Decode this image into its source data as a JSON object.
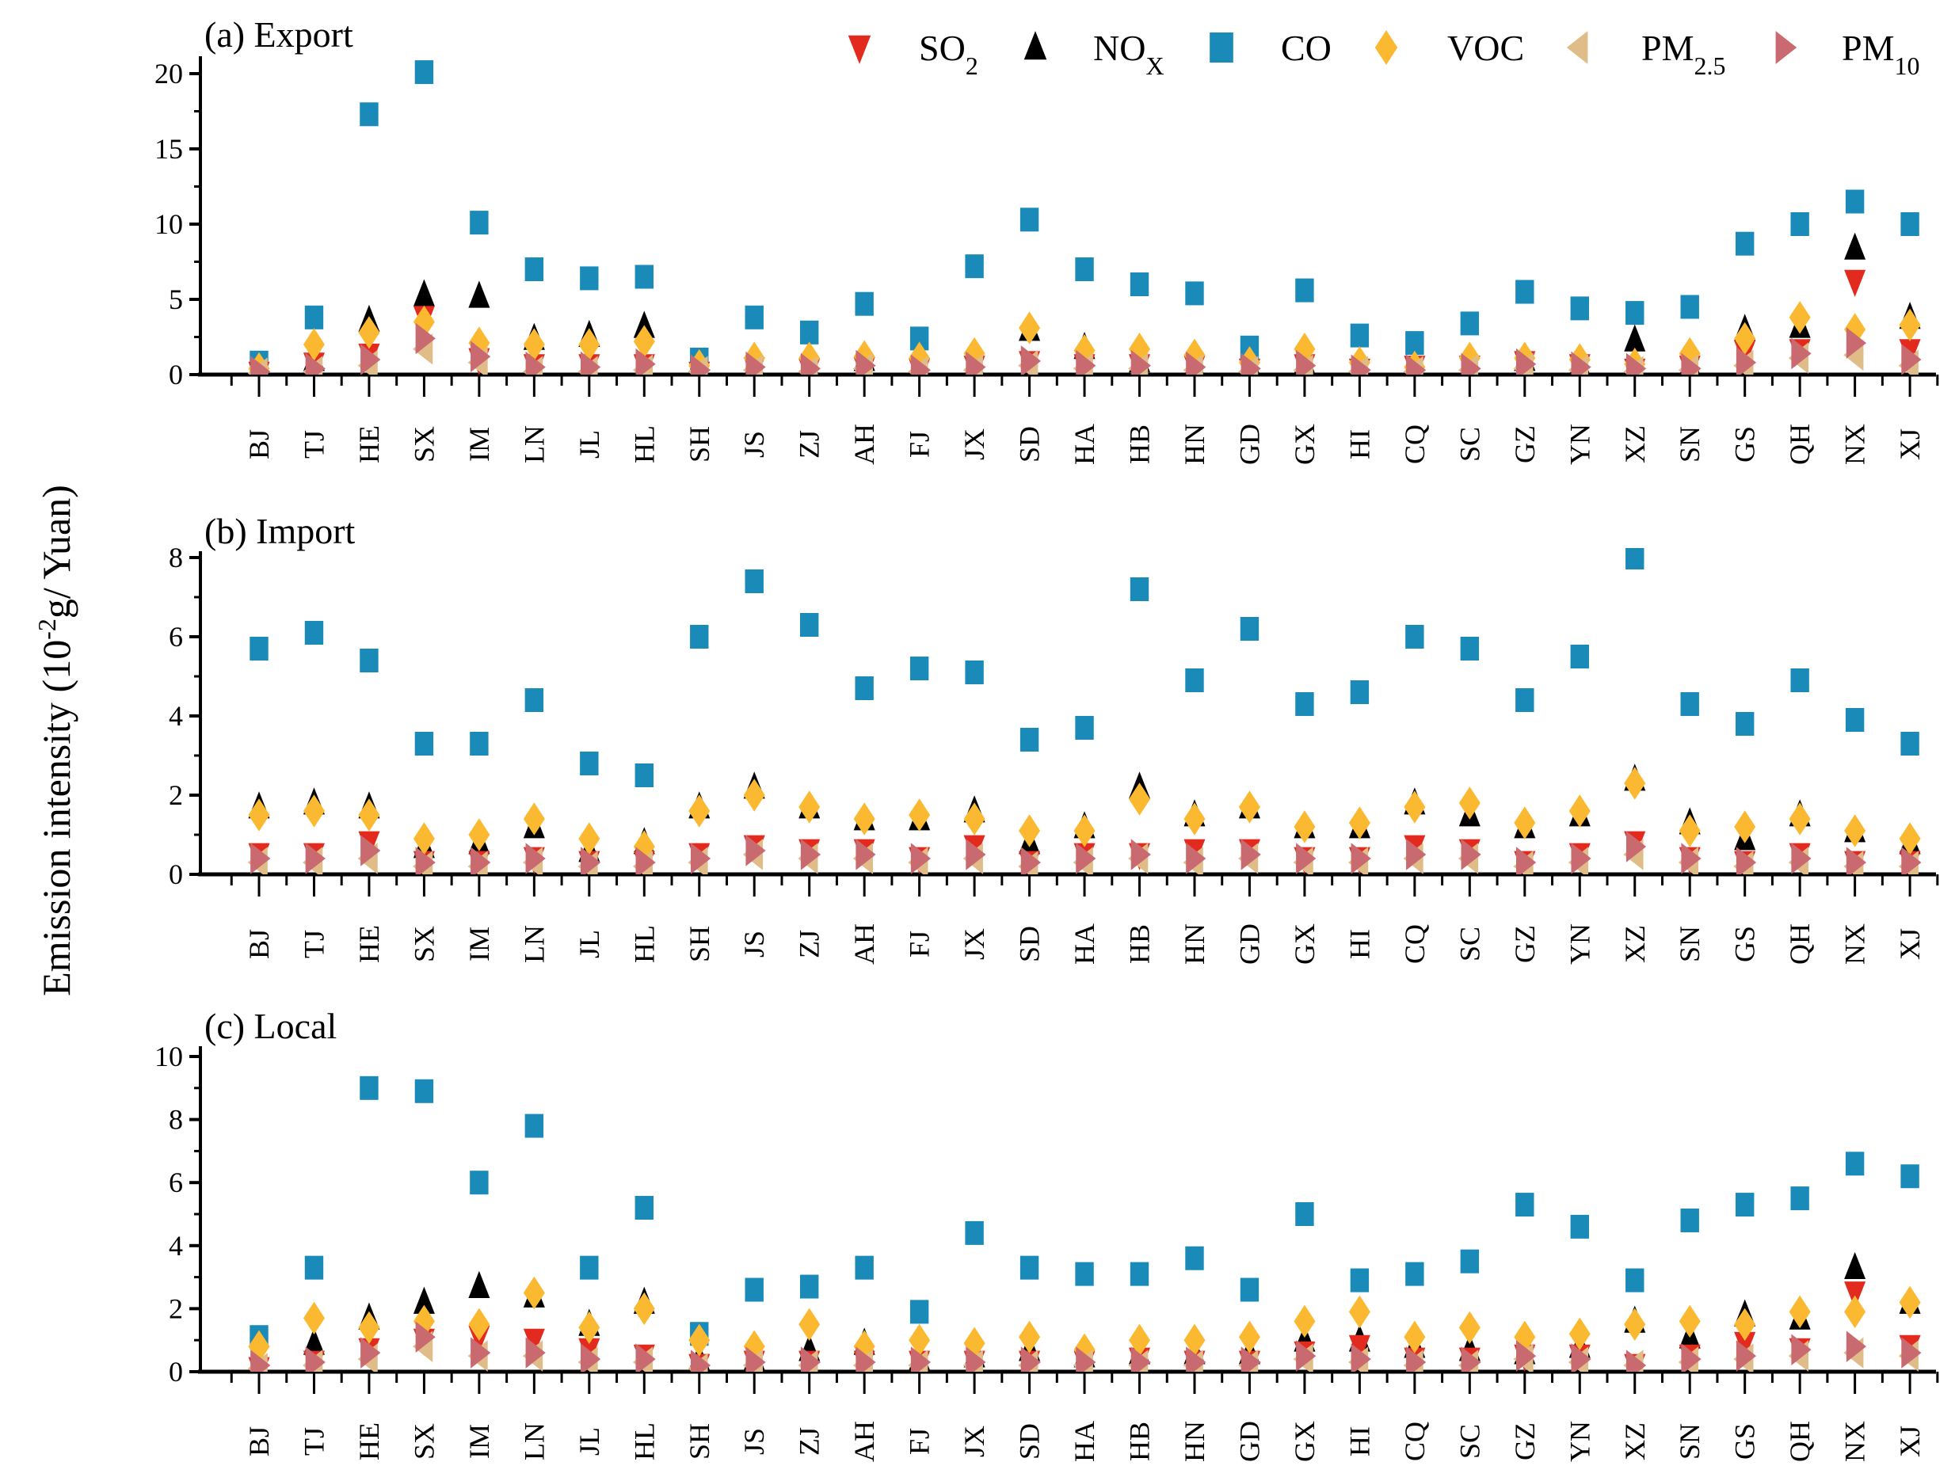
{
  "y_axis_label": {
    "main": "Emission intensity (10",
    "sup": "-2",
    "rest": "g/ Yuan)"
  },
  "legend": [
    {
      "key": "SO2",
      "main": "SO",
      "sub": "2",
      "color": "#e32a1f",
      "marker": "triangle-down"
    },
    {
      "key": "NOX",
      "main": "NO",
      "sub": "X",
      "color": "#000000",
      "marker": "triangle-up"
    },
    {
      "key": "CO",
      "main": "CO",
      "sub": "",
      "color": "#1a8ab8",
      "marker": "square"
    },
    {
      "key": "VOC",
      "main": "VOC",
      "sub": "",
      "color": "#fbb931",
      "marker": "diamond"
    },
    {
      "key": "PM25",
      "main": "PM",
      "sub": "2.5",
      "color": "#e0bd88",
      "marker": "triangle-left"
    },
    {
      "key": "PM10",
      "main": "PM",
      "sub": "10",
      "color": "#c96a70",
      "marker": "triangle-right"
    }
  ],
  "chart_data": [
    {
      "type": "scatter",
      "title": "(a) Export",
      "ylim": [
        0,
        20
      ],
      "yticks": [
        0,
        5,
        10,
        15,
        20
      ],
      "categories": [
        "BJ",
        "TJ",
        "HE",
        "SX",
        "IM",
        "LN",
        "JL",
        "HL",
        "SH",
        "JS",
        "ZJ",
        "AH",
        "FJ",
        "JX",
        "SD",
        "HA",
        "HB",
        "HN",
        "GD",
        "GX",
        "HI",
        "CQ",
        "SC",
        "GZ",
        "YN",
        "XZ",
        "SN",
        "GS",
        "QH",
        "NX",
        "XJ"
      ],
      "series": [
        {
          "name": "CO",
          "values": [
            0.8,
            3.8,
            17.3,
            20.1,
            10.1,
            7.0,
            6.4,
            6.5,
            1.0,
            3.8,
            2.8,
            4.7,
            2.4,
            7.2,
            10.3,
            7.0,
            6.0,
            5.4,
            1.8,
            5.6,
            2.6,
            2.1,
            3.4,
            5.5,
            4.4,
            4.1,
            4.5,
            8.7,
            10.0,
            11.5,
            10.0
          ]
        },
        {
          "name": "NOX",
          "values": [
            0.2,
            1.0,
            3.6,
            5.3,
            5.2,
            2.4,
            2.6,
            3.2,
            0.3,
            0.6,
            0.6,
            1.0,
            0.5,
            0.6,
            3.0,
            1.8,
            0.9,
            0.6,
            0.7,
            0.8,
            0.4,
            0.3,
            0.4,
            1.0,
            0.7,
            2.3,
            0.7,
            3.0,
            3.2,
            8.4,
            3.8
          ]
        },
        {
          "name": "SO2",
          "values": [
            0.1,
            0.7,
            1.3,
            3.8,
            1.0,
            0.6,
            0.6,
            0.6,
            0.1,
            0.4,
            0.3,
            0.4,
            0.3,
            0.5,
            0.8,
            0.6,
            0.6,
            0.5,
            0.3,
            0.6,
            0.3,
            0.5,
            0.5,
            0.8,
            0.6,
            0.3,
            0.5,
            1.5,
            1.6,
            6.2,
            1.6
          ]
        },
        {
          "name": "VOC",
          "values": [
            0.4,
            2.0,
            2.8,
            3.5,
            2.1,
            2.0,
            2.0,
            2.2,
            0.6,
            1.1,
            1.1,
            1.2,
            1.1,
            1.4,
            3.1,
            1.6,
            1.7,
            1.3,
            0.8,
            1.7,
            0.8,
            0.5,
            1.1,
            1.1,
            1.0,
            0.7,
            1.4,
            2.4,
            3.8,
            3.0,
            3.3
          ]
        },
        {
          "name": "PM25",
          "values": [
            0.1,
            0.2,
            0.6,
            1.7,
            0.8,
            0.2,
            0.2,
            0.3,
            0.2,
            0.3,
            0.2,
            0.4,
            0.2,
            0.3,
            0.6,
            0.4,
            0.4,
            0.3,
            0.2,
            0.3,
            0.2,
            0.2,
            0.3,
            0.4,
            0.3,
            0.2,
            0.3,
            0.6,
            1.1,
            1.3,
            0.6
          ]
        },
        {
          "name": "PM10",
          "values": [
            0.2,
            0.4,
            1.0,
            2.4,
            1.2,
            0.5,
            0.5,
            0.7,
            0.3,
            0.5,
            0.4,
            0.6,
            0.3,
            0.5,
            0.9,
            0.6,
            0.6,
            0.5,
            0.4,
            0.6,
            0.3,
            0.3,
            0.4,
            0.7,
            0.5,
            0.4,
            0.4,
            0.8,
            1.4,
            2.1,
            1.0
          ]
        }
      ]
    },
    {
      "type": "scatter",
      "title": "(b) Import",
      "ylim": [
        0,
        8
      ],
      "yticks": [
        0,
        2,
        4,
        6,
        8
      ],
      "categories": [
        "BJ",
        "TJ",
        "HE",
        "SX",
        "IM",
        "LN",
        "JL",
        "HL",
        "SH",
        "JS",
        "ZJ",
        "AH",
        "FJ",
        "JX",
        "SD",
        "HA",
        "HB",
        "HN",
        "GD",
        "GX",
        "HI",
        "CQ",
        "SC",
        "GZ",
        "YN",
        "XZ",
        "SN",
        "GS",
        "QH",
        "NX",
        "XJ"
      ],
      "series": [
        {
          "name": "CO",
          "values": [
            5.7,
            6.1,
            5.4,
            3.3,
            3.3,
            4.4,
            2.8,
            2.5,
            6.0,
            7.4,
            6.3,
            4.7,
            5.2,
            5.1,
            3.4,
            3.7,
            7.2,
            4.9,
            6.2,
            4.3,
            4.6,
            6.0,
            5.7,
            4.4,
            5.5,
            8.0,
            4.3,
            3.8,
            4.9,
            3.9,
            3.3
          ]
        },
        {
          "name": "NOX",
          "values": [
            1.7,
            1.8,
            1.7,
            0.7,
            0.8,
            1.2,
            0.6,
            0.8,
            1.7,
            2.2,
            1.7,
            1.4,
            1.4,
            1.6,
            0.8,
            1.2,
            2.2,
            1.5,
            1.7,
            1.2,
            1.2,
            1.8,
            1.5,
            1.2,
            1.5,
            2.4,
            1.3,
            0.9,
            1.5,
            1.1,
            0.8
          ]
        },
        {
          "name": "SO2",
          "values": [
            0.5,
            0.5,
            0.8,
            0.3,
            0.3,
            0.4,
            0.3,
            0.3,
            0.5,
            0.7,
            0.6,
            0.6,
            0.4,
            0.7,
            0.3,
            0.5,
            0.5,
            0.6,
            0.6,
            0.4,
            0.4,
            0.7,
            0.6,
            0.3,
            0.5,
            0.8,
            0.4,
            0.3,
            0.5,
            0.3,
            0.3
          ]
        },
        {
          "name": "VOC",
          "values": [
            1.5,
            1.6,
            1.5,
            0.9,
            1.0,
            1.4,
            0.9,
            0.7,
            1.6,
            2.0,
            1.7,
            1.4,
            1.5,
            1.4,
            1.1,
            1.1,
            1.9,
            1.4,
            1.7,
            1.2,
            1.3,
            1.7,
            1.8,
            1.3,
            1.6,
            2.3,
            1.1,
            1.2,
            1.4,
            1.1,
            0.9
          ]
        },
        {
          "name": "PM25",
          "values": [
            0.3,
            0.3,
            0.4,
            0.2,
            0.2,
            0.3,
            0.2,
            0.2,
            0.3,
            0.5,
            0.4,
            0.4,
            0.3,
            0.4,
            0.2,
            0.3,
            0.4,
            0.3,
            0.4,
            0.3,
            0.3,
            0.4,
            0.4,
            0.2,
            0.3,
            0.5,
            0.3,
            0.2,
            0.3,
            0.2,
            0.2
          ]
        },
        {
          "name": "PM10",
          "values": [
            0.4,
            0.4,
            0.6,
            0.3,
            0.3,
            0.4,
            0.3,
            0.3,
            0.4,
            0.6,
            0.5,
            0.5,
            0.4,
            0.5,
            0.3,
            0.4,
            0.5,
            0.4,
            0.5,
            0.4,
            0.4,
            0.5,
            0.5,
            0.3,
            0.4,
            0.7,
            0.4,
            0.3,
            0.4,
            0.3,
            0.3
          ]
        }
      ]
    },
    {
      "type": "scatter",
      "title": "(c) Local",
      "ylim": [
        0,
        10
      ],
      "yticks": [
        0,
        2,
        4,
        6,
        8,
        10
      ],
      "categories": [
        "BJ",
        "TJ",
        "HE",
        "SX",
        "IM",
        "LN",
        "JL",
        "HL",
        "SH",
        "JS",
        "ZJ",
        "AH",
        "FJ",
        "JX",
        "SD",
        "HA",
        "HB",
        "HN",
        "GD",
        "GX",
        "HI",
        "CQ",
        "SC",
        "GZ",
        "YN",
        "XZ",
        "SN",
        "GS",
        "QH",
        "NX",
        "XJ"
      ],
      "series": [
        {
          "name": "CO",
          "values": [
            1.1,
            3.3,
            9.0,
            8.9,
            6.0,
            7.8,
            3.3,
            5.2,
            1.2,
            2.6,
            2.7,
            3.3,
            1.9,
            4.4,
            3.3,
            3.1,
            3.1,
            3.6,
            2.6,
            5.0,
            2.9,
            3.1,
            3.5,
            5.3,
            4.6,
            2.9,
            4.8,
            5.3,
            5.5,
            6.6,
            6.2
          ]
        },
        {
          "name": "NOX",
          "values": [
            0.2,
            0.9,
            1.7,
            2.2,
            2.7,
            2.4,
            1.5,
            2.2,
            0.4,
            0.4,
            0.7,
            0.9,
            0.4,
            0.5,
            0.7,
            0.5,
            0.6,
            0.6,
            0.6,
            1.0,
            1.0,
            0.8,
            0.7,
            0.6,
            0.8,
            1.6,
            1.1,
            1.8,
            1.7,
            3.3,
            2.2
          ]
        },
        {
          "name": "SO2",
          "values": [
            0.1,
            0.3,
            0.7,
            1.0,
            1.1,
            1.0,
            0.7,
            0.5,
            0.2,
            0.3,
            0.3,
            0.3,
            0.3,
            0.3,
            0.3,
            0.3,
            0.4,
            0.3,
            0.3,
            0.6,
            0.8,
            0.4,
            0.4,
            0.5,
            0.5,
            0.2,
            0.5,
            0.9,
            0.7,
            2.5,
            0.8
          ]
        },
        {
          "name": "VOC",
          "values": [
            0.8,
            1.7,
            1.4,
            1.6,
            1.5,
            2.5,
            1.4,
            2.0,
            1.0,
            0.8,
            1.5,
            0.8,
            1.0,
            0.9,
            1.1,
            0.7,
            1.0,
            1.0,
            1.1,
            1.6,
            1.9,
            1.1,
            1.4,
            1.1,
            1.2,
            1.5,
            1.6,
            1.5,
            1.9,
            1.9,
            2.2
          ]
        },
        {
          "name": "PM25",
          "values": [
            0.1,
            0.2,
            0.4,
            0.8,
            0.5,
            0.5,
            0.3,
            0.3,
            0.1,
            0.2,
            0.2,
            0.2,
            0.2,
            0.2,
            0.2,
            0.2,
            0.2,
            0.2,
            0.2,
            0.4,
            0.3,
            0.2,
            0.2,
            0.4,
            0.3,
            0.2,
            0.3,
            0.4,
            0.5,
            0.6,
            0.5
          ]
        },
        {
          "name": "PM10",
          "values": [
            0.2,
            0.3,
            0.6,
            1.1,
            0.6,
            0.6,
            0.4,
            0.4,
            0.2,
            0.3,
            0.3,
            0.3,
            0.3,
            0.3,
            0.3,
            0.3,
            0.3,
            0.3,
            0.3,
            0.5,
            0.4,
            0.3,
            0.3,
            0.5,
            0.4,
            0.2,
            0.4,
            0.5,
            0.7,
            0.8,
            0.6
          ]
        }
      ]
    }
  ]
}
